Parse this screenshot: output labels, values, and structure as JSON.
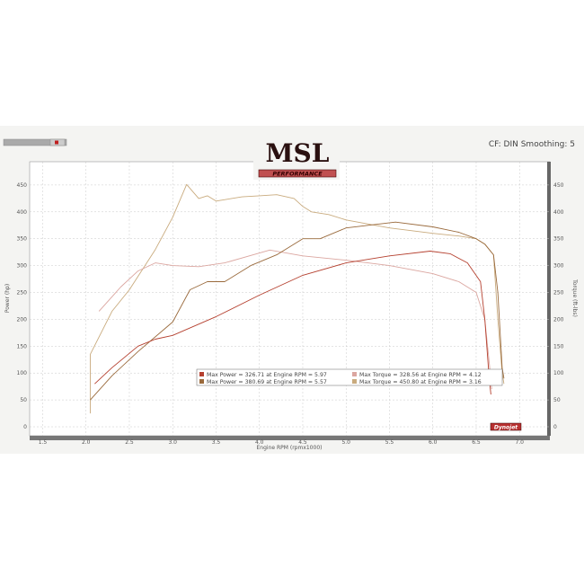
{
  "header": {
    "logo_text": "MSL",
    "logo_subtext": "PERFORMANCE",
    "settings_text": "CF: DIN Smoothing: 5",
    "dynojet_logo": "Dynojet"
  },
  "colors": {
    "power_run1": "#b5402f",
    "power_run2": "#9a6a3c",
    "torque_run1": "#dba6a0",
    "torque_run2": "#c9ab7e",
    "grid": "#c8c8c8"
  },
  "chart_data": {
    "type": "line",
    "xlabel": "Engine RPM (rpmx1000)",
    "ylabel": "Power (hp)",
    "y2label": "Torque (ft-lbs)",
    "xlim": [
      1.35,
      7.35
    ],
    "ylim": [
      0,
      480
    ],
    "y2lim": [
      0,
      480
    ],
    "xticks": [
      "1.5",
      "2.0",
      "2.5",
      "3.0",
      "3.5",
      "4.0",
      "4.5",
      "5.0",
      "5.5",
      "6.0",
      "6.5",
      "7.0"
    ],
    "yticks": [
      "0",
      "50",
      "100",
      "150",
      "200",
      "250",
      "300",
      "350",
      "400",
      "450"
    ],
    "grid": true,
    "legend_placement": "bottom-center",
    "legend": [
      {
        "text": "Max Power = 326.71 at Engine RPM = 5.97",
        "series": "power_run1"
      },
      {
        "text": "Max Torque = 328.56 at Engine RPM = 4.12",
        "series": "torque_run1"
      },
      {
        "text": "Max Power = 380.69 at Engine RPM = 5.57",
        "series": "power_run2"
      },
      {
        "text": "Max Torque = 450.80 at Engine RPM = 3.16",
        "series": "torque_run2"
      }
    ],
    "series": [
      {
        "key": "torque_run2",
        "axis": "right",
        "x": [
          2.05,
          2.05,
          2.3,
          2.5,
          2.8,
          3.0,
          3.16,
          3.3,
          3.4,
          3.5,
          3.8,
          4.0,
          4.2,
          4.4,
          4.5,
          4.6,
          4.8,
          5.0,
          5.5,
          6.0,
          6.3,
          6.5,
          6.6,
          6.7,
          6.75,
          6.8,
          6.82
        ],
        "y": [
          25,
          135,
          215,
          255,
          330,
          390,
          451,
          425,
          430,
          420,
          428,
          430,
          432,
          425,
          410,
          400,
          395,
          385,
          370,
          360,
          355,
          350,
          340,
          320,
          200,
          100,
          80
        ]
      },
      {
        "key": "torque_run1",
        "axis": "right",
        "x": [
          2.15,
          2.4,
          2.6,
          2.8,
          3.0,
          3.3,
          3.6,
          4.12,
          4.5,
          5.0,
          5.5,
          6.0,
          6.3,
          6.5,
          6.6,
          6.65,
          6.68
        ],
        "y": [
          215,
          260,
          290,
          305,
          300,
          298,
          305,
          329,
          318,
          310,
          300,
          285,
          270,
          250,
          200,
          120,
          70
        ]
      },
      {
        "key": "power_run2",
        "axis": "left",
        "x": [
          2.05,
          2.3,
          2.6,
          3.0,
          3.2,
          3.4,
          3.6,
          3.9,
          4.2,
          4.5,
          4.7,
          5.0,
          5.57,
          6.0,
          6.3,
          6.5,
          6.6,
          6.7,
          6.75,
          6.8,
          6.82
        ],
        "y": [
          50,
          95,
          140,
          195,
          255,
          270,
          270,
          300,
          320,
          350,
          350,
          370,
          381,
          372,
          362,
          350,
          340,
          320,
          250,
          110,
          90
        ]
      },
      {
        "key": "power_run1",
        "axis": "left",
        "x": [
          2.1,
          2.3,
          2.6,
          2.8,
          3.0,
          3.5,
          4.0,
          4.5,
          5.0,
          5.5,
          5.97,
          6.2,
          6.4,
          6.55,
          6.6,
          6.65,
          6.67
        ],
        "y": [
          80,
          110,
          150,
          163,
          170,
          205,
          245,
          282,
          305,
          318,
          327,
          322,
          305,
          270,
          200,
          90,
          60
        ]
      }
    ]
  }
}
